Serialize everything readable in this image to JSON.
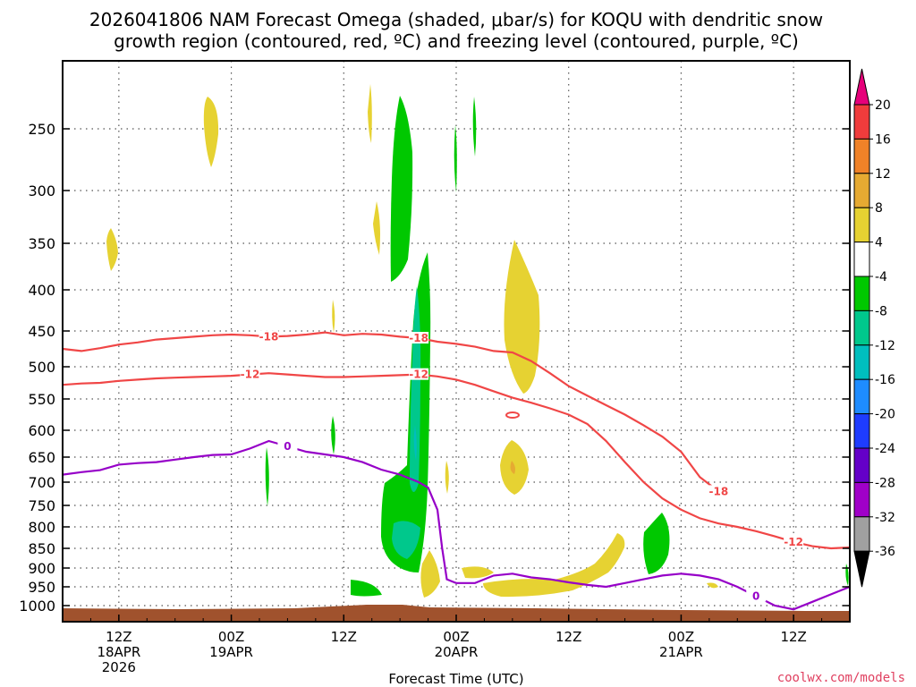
{
  "chart_data": {
    "type": "heatmap",
    "title_line1": "2026041806 NAM Forecast Omega (shaded, μbar/s) for KOQU with dendritic snow",
    "title_line2": "growth region (contoured, red, ºC) and freezing level (contoured, purple, ºC)",
    "xlabel": "Forecast Time (UTC)",
    "credit": "coolwx.com/models",
    "y_axis": {
      "units": "hPa",
      "ylim": [
        1025,
        200
      ],
      "ticks": [
        "250",
        "300",
        "350",
        "400",
        "450",
        "500",
        "550",
        "600",
        "650",
        "700",
        "750",
        "800",
        "850",
        "900",
        "950",
        "1000"
      ]
    },
    "x_axis": {
      "units": "forecast hour",
      "xlim": [
        0,
        84
      ],
      "ticks": [
        {
          "hour": 6,
          "line1": "12Z",
          "line2": "18APR",
          "line3": "2026"
        },
        {
          "hour": 18,
          "line1": "00Z",
          "line2": "19APR",
          "line3": ""
        },
        {
          "hour": 30,
          "line1": "12Z",
          "line2": "",
          "line3": ""
        },
        {
          "hour": 42,
          "line1": "00Z",
          "line2": "20APR",
          "line3": ""
        },
        {
          "hour": 54,
          "line1": "12Z",
          "line2": "",
          "line3": ""
        },
        {
          "hour": 66,
          "line1": "00Z",
          "line2": "21APR",
          "line3": ""
        },
        {
          "hour": 78,
          "line1": "12Z",
          "line2": "",
          "line3": ""
        }
      ]
    },
    "colorbar": {
      "labels": [
        "20",
        "16",
        "12",
        "8",
        "4",
        "-4",
        "-8",
        "-12",
        "-16",
        "-20",
        "-24",
        "-28",
        "-32",
        "-36"
      ],
      "colors": [
        "#f03c3c",
        "#f08228",
        "#e6aa32",
        "#e6d232",
        "#ffffff",
        "#00c800",
        "#00c88c",
        "#00bebe",
        "#1e8cff",
        "#1e3cff",
        "#6400c8",
        "#a000c8",
        "#a0a0a0"
      ],
      "top_arrow_color": "#e6007a",
      "bottom_arrow_color": "#000000"
    },
    "contour_labels": {
      "freezing": "0",
      "dgz_upper": "-18",
      "dgz_lower": "-12"
    },
    "series": [
      {
        "name": "freezing level 0C",
        "color": "#9600c8",
        "x": [
          0,
          2,
          4,
          6,
          8,
          10,
          12,
          14,
          16,
          18,
          20,
          22,
          24,
          26,
          28,
          30,
          32,
          34,
          36,
          38,
          39,
          40,
          40.5,
          41,
          42,
          44,
          46,
          48,
          50,
          52,
          54,
          56,
          58,
          60,
          62,
          64,
          66,
          68,
          70,
          72,
          74,
          76,
          78,
          80,
          82,
          84
        ],
        "p": [
          685,
          680,
          676,
          665,
          662,
          660,
          655,
          650,
          646,
          645,
          634,
          620,
          630,
          640,
          645,
          650,
          660,
          675,
          685,
          700,
          712,
          760,
          850,
          930,
          940,
          940,
          920,
          915,
          925,
          930,
          938,
          945,
          950,
          940,
          930,
          920,
          915,
          920,
          930,
          950,
          975,
          1000,
          1010,
          990,
          970,
          950
        ]
      },
      {
        "name": "dgz -18C",
        "color": "#f04646",
        "x": [
          0,
          2,
          4,
          6,
          8,
          10,
          12,
          14,
          16,
          18,
          20,
          22,
          24,
          26,
          28,
          30,
          32,
          34,
          36,
          38,
          40,
          42,
          44,
          46,
          48,
          50,
          52,
          54,
          56,
          58,
          60,
          62,
          64,
          66,
          68,
          70
        ],
        "p": [
          475,
          478,
          474,
          469,
          466,
          462,
          460,
          458,
          456,
          455,
          456,
          458,
          457,
          455,
          452,
          456,
          454,
          455,
          458,
          460,
          465,
          468,
          472,
          478,
          480,
          492,
          510,
          530,
          545,
          560,
          575,
          592,
          612,
          640,
          690,
          720
        ]
      },
      {
        "name": "dgz -12C",
        "color": "#f04646",
        "x": [
          0,
          2,
          4,
          6,
          8,
          10,
          12,
          14,
          16,
          18,
          20,
          22,
          24,
          26,
          28,
          30,
          32,
          34,
          36,
          38,
          40,
          42,
          44,
          46,
          48,
          50,
          52,
          54,
          56,
          58,
          60,
          62,
          64,
          66,
          68,
          70,
          72,
          74,
          76,
          78,
          80,
          82,
          84
        ],
        "p": [
          528,
          526,
          525,
          522,
          520,
          518,
          517,
          516,
          515,
          514,
          512,
          510,
          512,
          514,
          516,
          516,
          515,
          514,
          513,
          512,
          515,
          520,
          528,
          538,
          548,
          556,
          565,
          575,
          590,
          620,
          660,
          700,
          735,
          760,
          780,
          792,
          800,
          810,
          822,
          835,
          845,
          850,
          848
        ]
      }
    ],
    "shaded_regions": [
      {
        "label": "-4 to -8",
        "color": "#00c800",
        "note": "strong upward motion column near 19APR 18Z-20APR 00Z"
      },
      {
        "label": "4 to 8",
        "color": "#e6d232",
        "note": "scattered sinking motion cells"
      },
      {
        "label": "8 to 12",
        "color": "#e6aa32",
        "note": "small core near 20APR 06Z 680 hPa"
      },
      {
        "label": "-8 to -12",
        "color": "#00c88c",
        "note": "core near 20APR 00Z 500-650 hPa"
      }
    ]
  }
}
